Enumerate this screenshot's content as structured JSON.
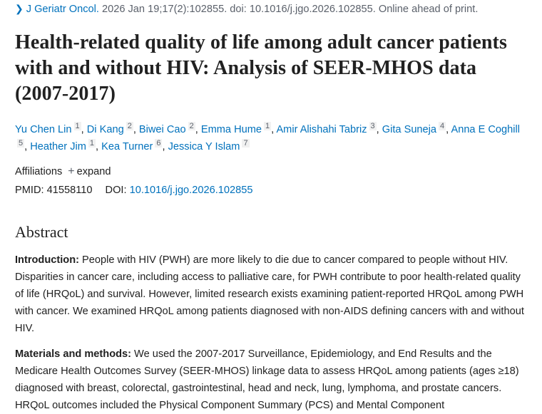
{
  "citation": {
    "journal": "J Geriatr Oncol.",
    "details": " 2026 Jan 19;17(2):102855. doi: 10.1016/j.jgo.2026.102855. Online ahead of print."
  },
  "title": "Health-related quality of life among adult cancer patients with and without HIV: Analysis of SEER-MHOS data (2007-2017)",
  "authors": [
    {
      "name": "Yu Chen Lin",
      "aff": "1"
    },
    {
      "name": "Di Kang",
      "aff": "2"
    },
    {
      "name": "Biwei Cao",
      "aff": "2"
    },
    {
      "name": "Emma Hume",
      "aff": "1"
    },
    {
      "name": "Amir Alishahi Tabriz",
      "aff": "3"
    },
    {
      "name": "Gita Suneja",
      "aff": "4"
    },
    {
      "name": "Anna E Coghill",
      "aff": "5"
    },
    {
      "name": "Heather Jim",
      "aff": "1"
    },
    {
      "name": "Kea Turner",
      "aff": "6"
    },
    {
      "name": "Jessica Y Islam",
      "aff": "7"
    }
  ],
  "affiliations": {
    "label": "Affiliations",
    "expand": "expand"
  },
  "ids": {
    "pmid_label": "PMID:",
    "pmid": "41558110",
    "doi_label": "DOI:",
    "doi": "10.1016/j.jgo.2026.102855"
  },
  "abstract": {
    "heading": "Abstract",
    "sections": [
      {
        "label": "Introduction:",
        "text": " People with HIV (PWH) are more likely to die due to cancer compared to people without HIV. Disparities in cancer care, including access to palliative care, for PWH contribute to poor health-related quality of life (HRQoL) and survival. However, limited research exists examining patient-reported HRQoL among PWH with cancer. We examined HRQoL among patients diagnosed with non-AIDS defining cancers with and without HIV."
      },
      {
        "label": "Materials and methods:",
        "text": " We used the 2007-2017 Surveillance, Epidemiology, and End Results and the Medicare Health Outcomes Survey (SEER-MHOS) linkage data to assess HRQoL among patients (ages ≥18) diagnosed with breast, colorectal, gastrointestinal, head and neck, lung, lymphoma, and prostate cancers. HRQoL outcomes included the Physical Component Summary (PCS) and Mental Component"
      }
    ]
  }
}
